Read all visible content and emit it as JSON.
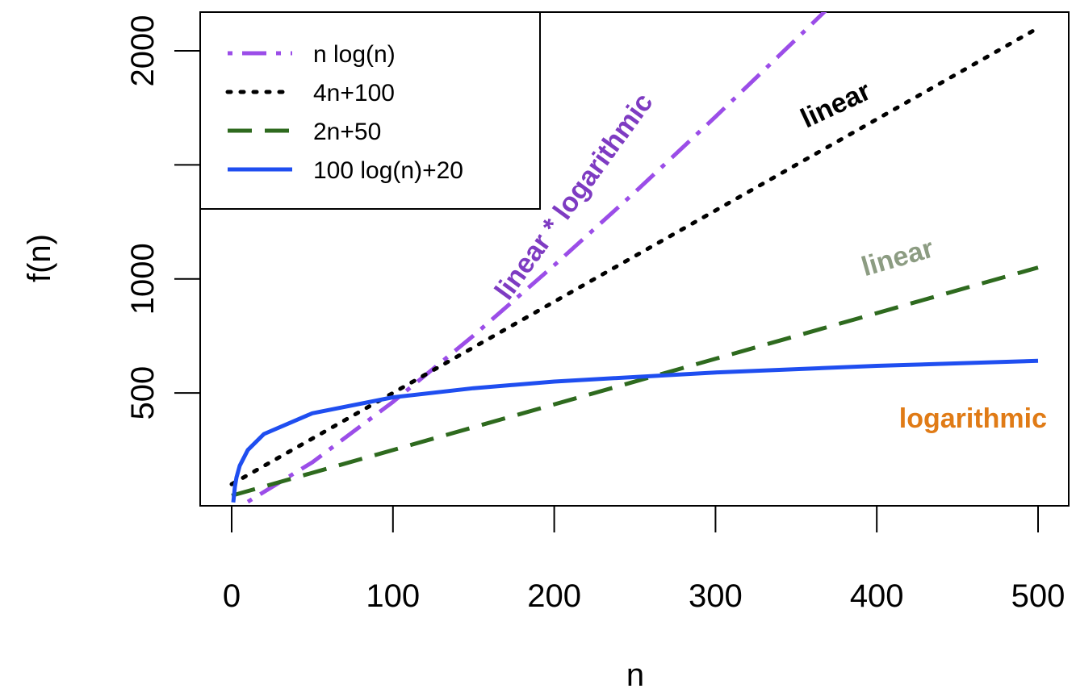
{
  "chart_data": {
    "type": "line",
    "title": "",
    "xlabel": "n",
    "ylabel": "f(n)",
    "xlim": [
      0,
      500
    ],
    "ylim": [
      0,
      2200
    ],
    "xticks": [
      "0",
      "100",
      "200",
      "300",
      "400",
      "500"
    ],
    "yticks": [
      "500",
      "1000",
      "2000"
    ],
    "legend_position": "top-left",
    "grid": false,
    "series": [
      {
        "name": "n log(n)",
        "color": "#9b4de8",
        "style": "dotdash",
        "x": [
          10,
          50,
          100,
          150,
          200,
          250,
          300,
          350,
          370
        ],
        "y": [
          23,
          196,
          461,
          752,
          1060,
          1380,
          1711,
          2051,
          2188
        ]
      },
      {
        "name": "4n+100",
        "color": "#000000",
        "style": "dotted",
        "x": [
          0,
          500
        ],
        "y": [
          100,
          2100
        ]
      },
      {
        "name": "2n+50",
        "color": "#2e6a1e",
        "style": "dashed",
        "x": [
          0,
          500
        ],
        "y": [
          50,
          1050
        ]
      },
      {
        "name": "100 log(n)+20",
        "color": "#1f4ef0",
        "style": "solid",
        "x": [
          1,
          2,
          3,
          5,
          10,
          20,
          50,
          100,
          150,
          200,
          300,
          400,
          500
        ],
        "y": [
          20,
          89,
          130,
          181,
          250,
          320,
          411,
          481,
          521,
          550,
          590,
          619,
          641
        ]
      }
    ],
    "annotations": [
      {
        "text": "linear * logarithmic",
        "color": "#7e3bc2"
      },
      {
        "text": "linear",
        "color": "#000000"
      },
      {
        "text": "linear",
        "color": "#8c9c82"
      },
      {
        "text": "logarithmic",
        "color": "#e07b16"
      }
    ]
  }
}
